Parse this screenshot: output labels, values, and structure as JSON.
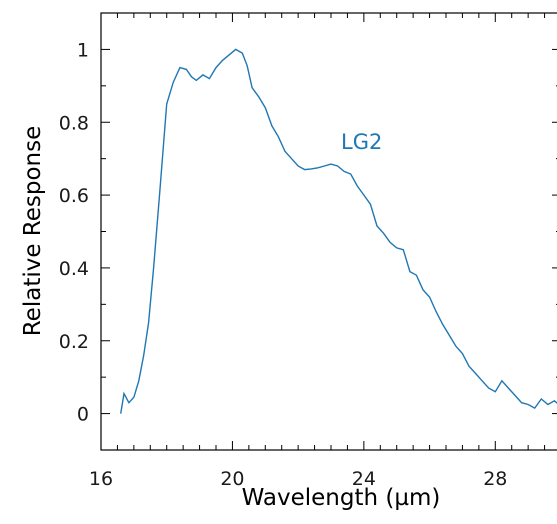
{
  "chart_data": {
    "type": "line",
    "title": "",
    "xlabel": "Wavelength (µm)",
    "ylabel": "Relative Response",
    "xlim": [
      16,
      30
    ],
    "ylim": [
      -0.1,
      1.1
    ],
    "xticks": [
      16,
      20,
      24,
      28
    ],
    "xtick_labels": [
      "16",
      "20",
      "24",
      "28"
    ],
    "yticks": [
      0,
      0.2,
      0.4,
      0.6,
      0.8,
      1
    ],
    "ytick_labels": [
      "0",
      "0.2",
      "0.4",
      "0.6",
      "0.8",
      "1"
    ],
    "grid": false,
    "line_color": "#1f77b4",
    "series": [
      {
        "name": "LG2",
        "x": [
          16.6,
          16.7,
          16.85,
          17.0,
          17.15,
          17.3,
          17.45,
          17.6,
          17.8,
          18.0,
          18.2,
          18.4,
          18.6,
          18.75,
          18.9,
          19.1,
          19.3,
          19.5,
          19.7,
          19.9,
          20.1,
          20.3,
          20.45,
          20.6,
          20.8,
          21.0,
          21.2,
          21.4,
          21.6,
          21.8,
          22.0,
          22.2,
          22.4,
          22.6,
          22.8,
          23.0,
          23.2,
          23.4,
          23.6,
          23.8,
          24.0,
          24.2,
          24.4,
          24.6,
          24.8,
          25.0,
          25.2,
          25.4,
          25.6,
          25.8,
          26.0,
          26.2,
          26.4,
          26.6,
          26.8,
          27.0,
          27.2,
          27.4,
          27.6,
          27.8,
          28.0,
          28.2,
          28.4,
          28.6,
          28.8,
          29.0,
          29.2,
          29.4,
          29.6,
          29.8,
          30.0
        ],
        "y": [
          0.0,
          0.055,
          0.03,
          0.045,
          0.09,
          0.16,
          0.25,
          0.4,
          0.62,
          0.85,
          0.91,
          0.95,
          0.945,
          0.925,
          0.915,
          0.93,
          0.92,
          0.95,
          0.97,
          0.985,
          1.0,
          0.99,
          0.955,
          0.895,
          0.87,
          0.84,
          0.79,
          0.76,
          0.72,
          0.7,
          0.68,
          0.67,
          0.672,
          0.675,
          0.68,
          0.685,
          0.68,
          0.665,
          0.658,
          0.625,
          0.6,
          0.575,
          0.515,
          0.495,
          0.47,
          0.455,
          0.45,
          0.39,
          0.38,
          0.34,
          0.32,
          0.28,
          0.245,
          0.215,
          0.185,
          0.165,
          0.13,
          0.11,
          0.09,
          0.07,
          0.06,
          0.09,
          0.07,
          0.05,
          0.03,
          0.025,
          0.015,
          0.04,
          0.025,
          0.035,
          0.02
        ]
      }
    ]
  }
}
